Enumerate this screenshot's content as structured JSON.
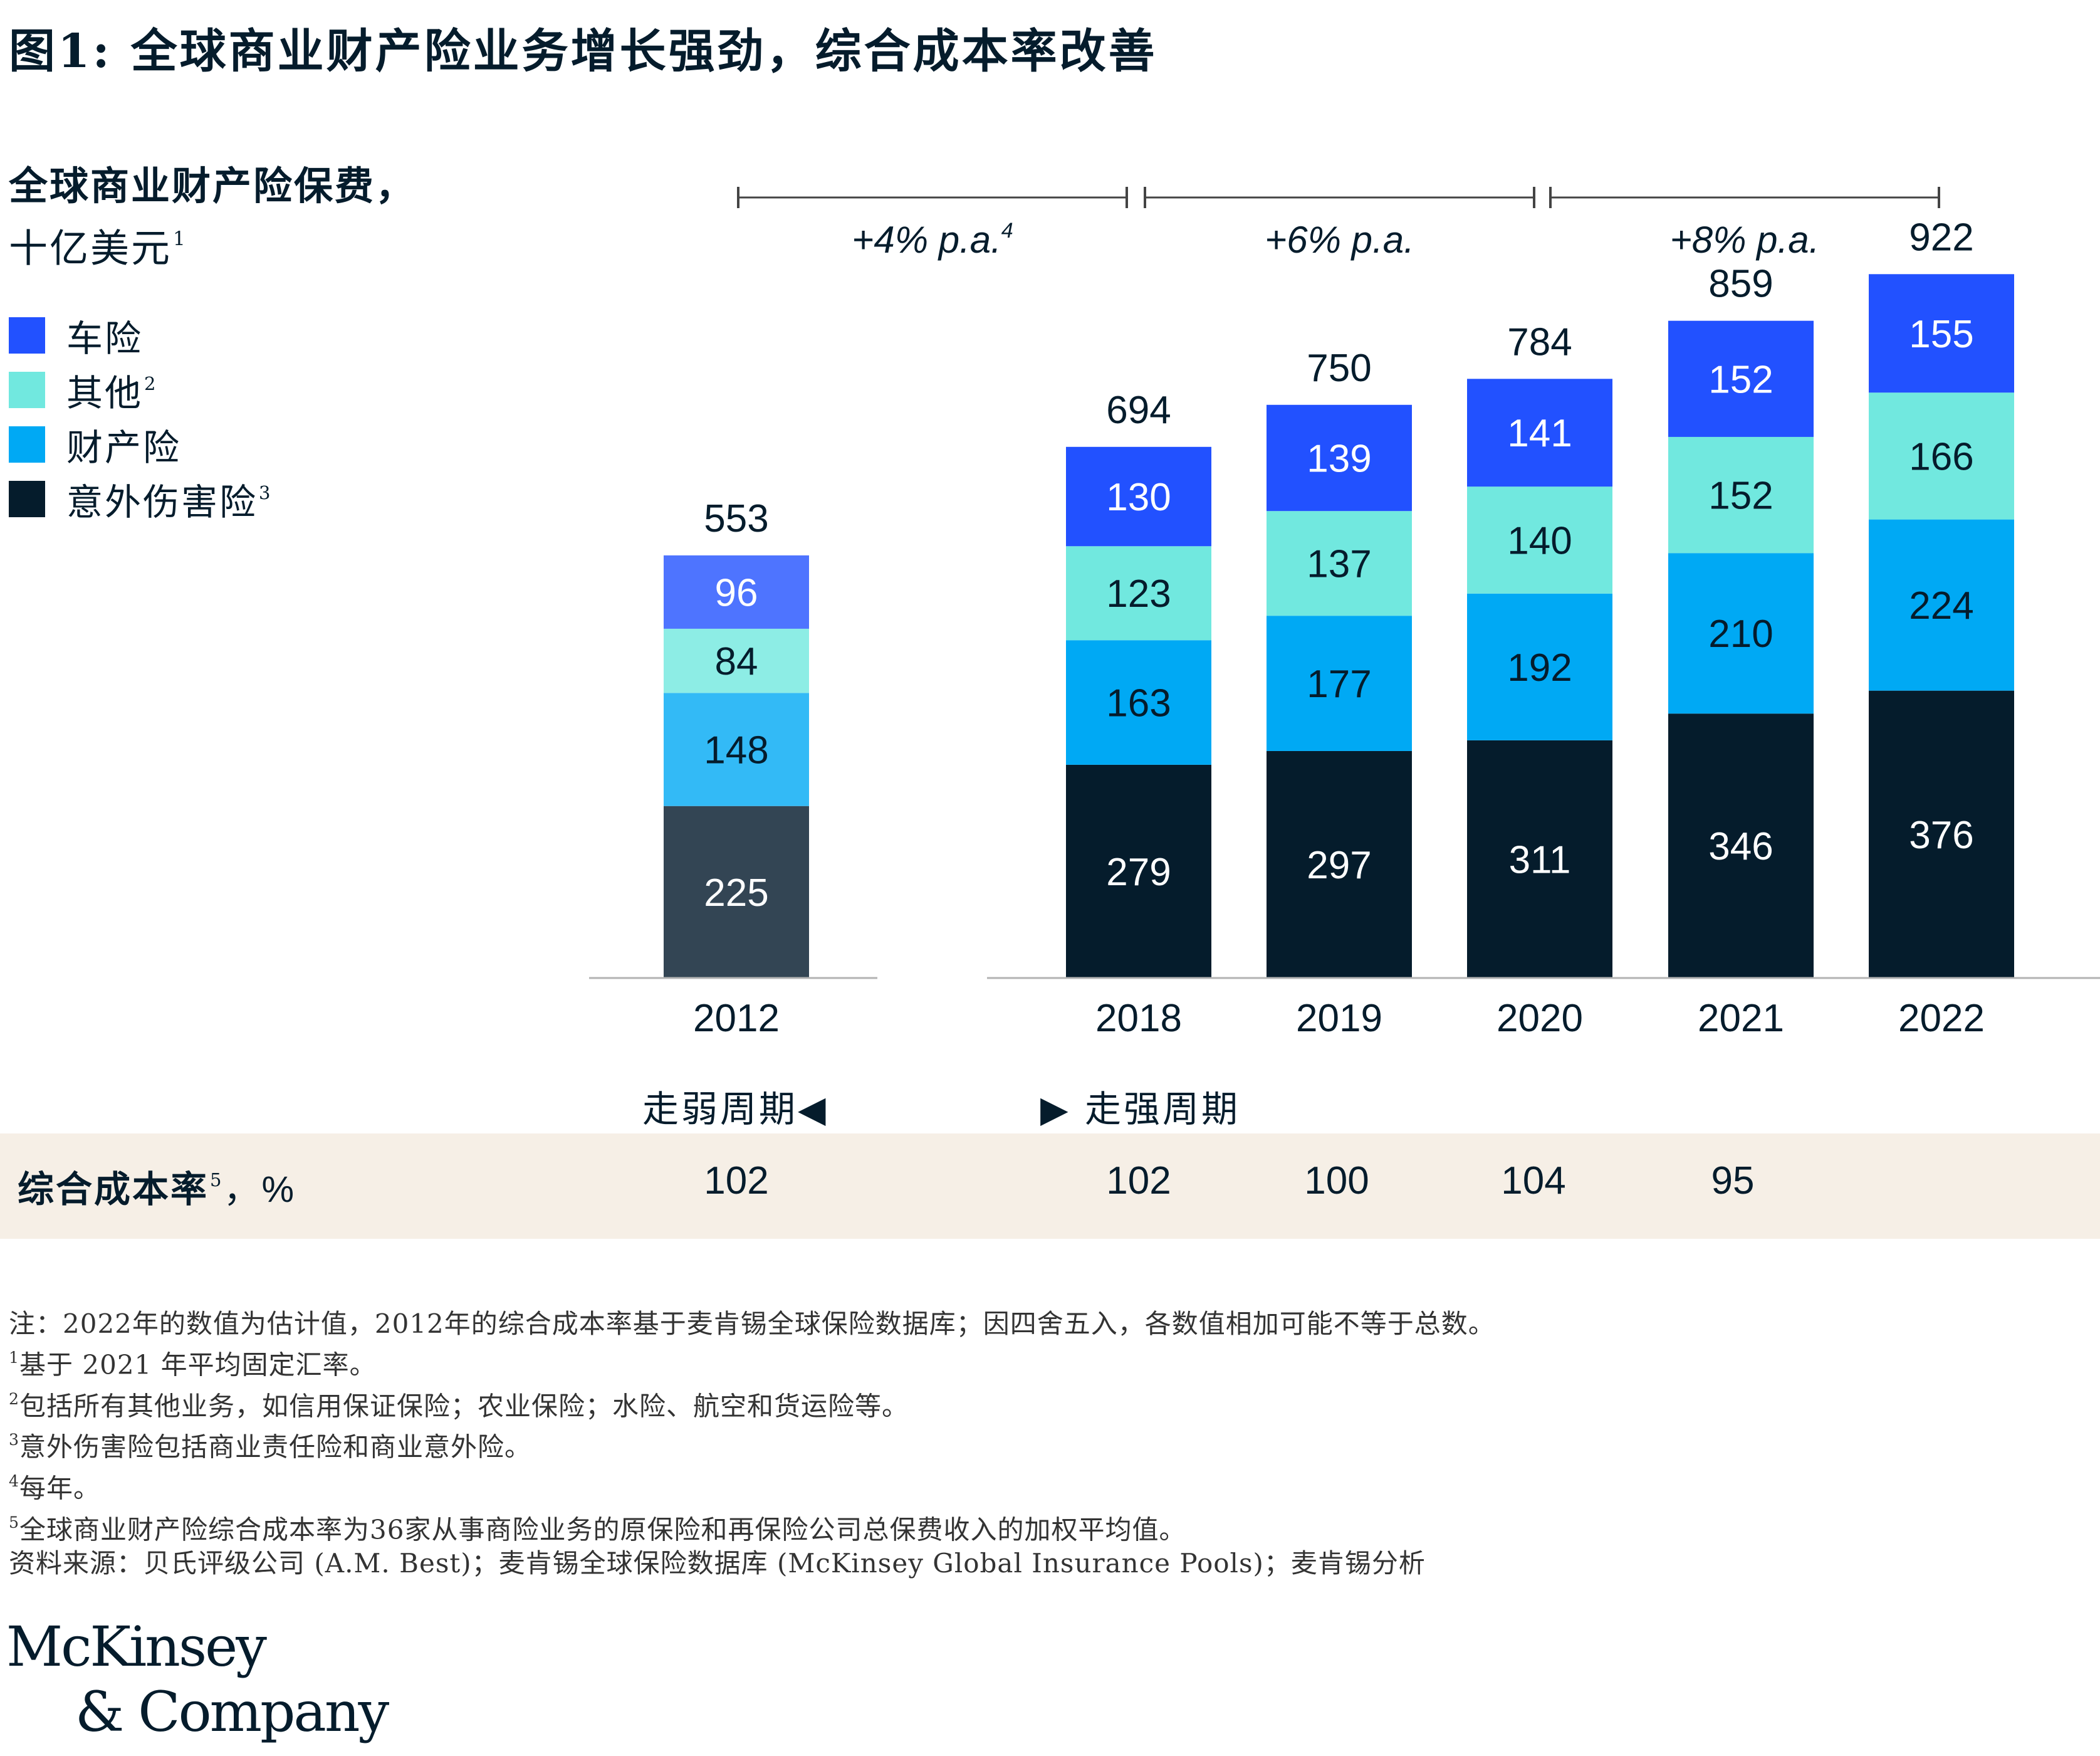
{
  "title": "图1: 全球商业财产险业务增长强劲，综合成本率改善",
  "y_title": {
    "line1": "全球商业财产险保费，",
    "line2": "十亿美元",
    "fn": "1"
  },
  "legend": [
    {
      "label": "车险",
      "fn": "",
      "color": "#2251ff"
    },
    {
      "label": "其他",
      "fn": "2",
      "color": "#71e8df"
    },
    {
      "label": "财产险",
      "fn": "",
      "color": "#00a9f4"
    },
    {
      "label": "意外伤害险",
      "fn": "3",
      "color": "#051c2c"
    }
  ],
  "growth": [
    {
      "label": "+4% p.a.",
      "fn": "4"
    },
    {
      "label": "+6% p.a.",
      "fn": ""
    },
    {
      "label": "+8% p.a.",
      "fn": ""
    }
  ],
  "chart_data": {
    "type": "bar",
    "stacked": true,
    "categories": [
      "2012",
      "2018",
      "2019",
      "2020",
      "2021",
      "2022"
    ],
    "series": [
      {
        "name": "意外伤害险",
        "values": [
          225,
          279,
          297,
          311,
          346,
          376
        ],
        "color": "#051c2c",
        "color_2012": "#334554",
        "label_color": "#ffffff"
      },
      {
        "name": "财产险",
        "values": [
          148,
          163,
          177,
          192,
          210,
          224
        ],
        "color": "#00a9f4",
        "color_2012": "#33baf6",
        "label_color": "#051c2c"
      },
      {
        "name": "其他",
        "values": [
          84,
          123,
          137,
          140,
          152,
          166
        ],
        "color": "#71e8df",
        "color_2012": "#8dede5",
        "label_color": "#051c2c"
      },
      {
        "name": "车险",
        "values": [
          96,
          130,
          139,
          141,
          152,
          155
        ],
        "color": "#2251ff",
        "color_2012": "#4e74ff",
        "label_color": "#ffffff"
      }
    ],
    "totals": [
      553,
      694,
      750,
      784,
      859,
      922
    ],
    "ylim": [
      0,
      922
    ],
    "xlabel": "",
    "ylabel": "全球商业财产险保费，十亿美元"
  },
  "cycles": {
    "weak": "走弱周期◀",
    "strong": "▶ 走强周期"
  },
  "combined_ratio": {
    "label": "综合成本率",
    "fn": "5",
    "unit": "，%",
    "values": [
      "102",
      "102",
      "100",
      "104",
      "95"
    ]
  },
  "notes": {
    "main": "注：2022年的数值为估计值，2012年的综合成本率基于麦肯锡全球保险数据库；因四舍五入，各数值相加可能不等于总数。",
    "fn1": "基于 2021 年平均固定汇率。",
    "fn2": "包括所有其他业务，如信用保证保险；农业保险；水险、航空和货运险等。",
    "fn3": "意外伤害险包括商业责任险和商业意外险。",
    "fn4": "每年。",
    "fn5": "全球商业财产险综合成本率为36家从事商险业务的原保险和再保险公司总保费收入的加权平均值。",
    "source": "资料来源：贝氏评级公司 (A.M. Best)；麦肯锡全球保险数据库 (McKinsey Global Insurance Pools)；麦肯锡分析"
  },
  "logo": {
    "line1": "McKinsey",
    "line2": "& Company"
  }
}
